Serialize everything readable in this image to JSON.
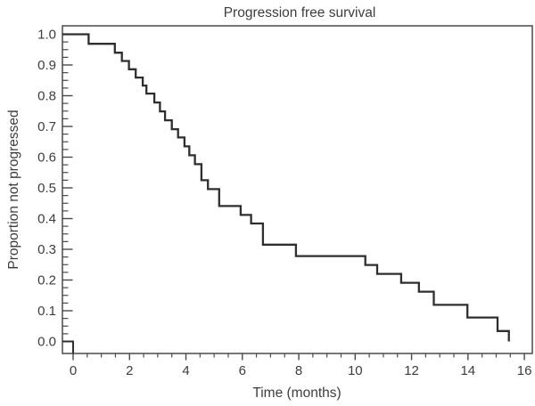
{
  "chart_data": {
    "type": "line",
    "style": "kaplan-meier-step",
    "title": "Progression free survival",
    "xlabel": "Time (months)",
    "ylabel": "Proportion not progressed",
    "xlim": [
      0,
      16
    ],
    "ylim": [
      0.0,
      1.0
    ],
    "grid": false,
    "legend": "none",
    "x_major_ticks": [
      0,
      2,
      4,
      6,
      8,
      10,
      12,
      14,
      16
    ],
    "x_tick_labels": [
      "0",
      "2",
      "4",
      "6",
      "8",
      "10",
      "12",
      "14",
      "16"
    ],
    "x_minor_tick_step": 0.5,
    "y_major_ticks": [
      0.0,
      0.1,
      0.2,
      0.3,
      0.4,
      0.5,
      0.6,
      0.7,
      0.8,
      0.9,
      1.0
    ],
    "y_tick_labels": [
      "0.0",
      "0.1",
      "0.2",
      "0.3",
      "0.4",
      "0.5",
      "0.6",
      "0.7",
      "0.8",
      "0.9",
      "1.0"
    ],
    "y_minor_tick_step": 0.025,
    "series": [
      {
        "name": "Progression free survival",
        "steps": [
          [
            0,
            1.0
          ],
          [
            0.55,
            0.969
          ],
          [
            1.48,
            0.94
          ],
          [
            1.73,
            0.913
          ],
          [
            1.98,
            0.886
          ],
          [
            2.22,
            0.859
          ],
          [
            2.47,
            0.833
          ],
          [
            2.6,
            0.807
          ],
          [
            2.88,
            0.778
          ],
          [
            3.08,
            0.749
          ],
          [
            3.26,
            0.72
          ],
          [
            3.5,
            0.691
          ],
          [
            3.72,
            0.664
          ],
          [
            3.95,
            0.635
          ],
          [
            4.12,
            0.606
          ],
          [
            4.32,
            0.577
          ],
          [
            4.55,
            0.525
          ],
          [
            4.78,
            0.496
          ],
          [
            5.18,
            0.441
          ],
          [
            5.94,
            0.412
          ],
          [
            6.31,
            0.384
          ],
          [
            6.73,
            0.315
          ],
          [
            7.9,
            0.278
          ],
          [
            10.36,
            0.249
          ],
          [
            10.78,
            0.22
          ],
          [
            11.63,
            0.191
          ],
          [
            12.26,
            0.162
          ],
          [
            12.79,
            0.119
          ],
          [
            13.98,
            0.078
          ],
          [
            15.05,
            0.034
          ],
          [
            15.45,
            0.0
          ]
        ]
      }
    ],
    "colors": {
      "curve": "#2e2e2e",
      "axis": "#4a4a4a",
      "text": "#3d3d3d"
    }
  }
}
